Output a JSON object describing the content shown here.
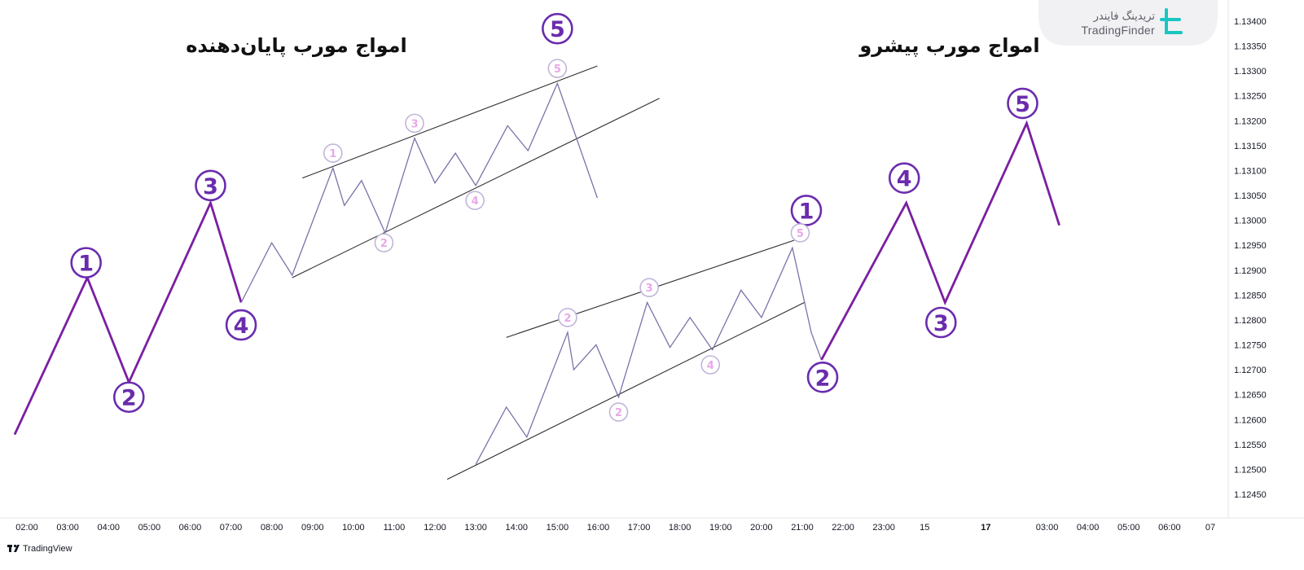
{
  "brand": {
    "name_fa": "تریدینگ فایندر",
    "name_en": "TradingFinder"
  },
  "footer": {
    "platform": "TradingView"
  },
  "colors": {
    "wave": "#7a1fa2",
    "subwave": "#7b73a8",
    "channel": "#2c2c2c",
    "label_big": "#6a2cae",
    "label_small": "#e9a8ea"
  },
  "chart_data": {
    "type": "line",
    "titles": [
      {
        "text": "امواج مورب پایان‌دهنده"
      },
      {
        "text": "امواج مورب پیشرو"
      }
    ],
    "y_axis": {
      "side": "right",
      "ylim": [
        1.1242,
        1.1344
      ],
      "ticks": [
        1.134,
        1.1335,
        1.133,
        1.1325,
        1.132,
        1.1315,
        1.131,
        1.1305,
        1.13,
        1.1295,
        1.129,
        1.1285,
        1.128,
        1.1275,
        1.127,
        1.1265,
        1.126,
        1.1255,
        1.125,
        1.1245
      ],
      "tick_labels": [
        "1.13400",
        "1.13350",
        "1.13300",
        "1.13250",
        "1.13200",
        "1.13150",
        "1.13100",
        "1.13050",
        "1.13000",
        "1.12950",
        "1.12900",
        "1.12850",
        "1.12800",
        "1.12750",
        "1.12700",
        "1.12650",
        "1.12600",
        "1.12550",
        "1.12500",
        "1.12450"
      ]
    },
    "x_axis": {
      "range_hours": [
        -0.3,
        29.3
      ],
      "ticks": [
        {
          "x": 0,
          "label": "02:00",
          "bold": false
        },
        {
          "x": 1,
          "label": "03:00",
          "bold": false
        },
        {
          "x": 2,
          "label": "04:00",
          "bold": false
        },
        {
          "x": 3,
          "label": "05:00",
          "bold": false
        },
        {
          "x": 4,
          "label": "06:00",
          "bold": false
        },
        {
          "x": 5,
          "label": "07:00",
          "bold": false
        },
        {
          "x": 6,
          "label": "08:00",
          "bold": false
        },
        {
          "x": 7,
          "label": "09:00",
          "bold": false
        },
        {
          "x": 8,
          "label": "10:00",
          "bold": false
        },
        {
          "x": 9,
          "label": "11:00",
          "bold": false
        },
        {
          "x": 10,
          "label": "12:00",
          "bold": false
        },
        {
          "x": 11,
          "label": "13:00",
          "bold": false
        },
        {
          "x": 12,
          "label": "14:00",
          "bold": false
        },
        {
          "x": 13,
          "label": "15:00",
          "bold": false
        },
        {
          "x": 14,
          "label": "16:00",
          "bold": false
        },
        {
          "x": 15,
          "label": "17:00",
          "bold": false
        },
        {
          "x": 16,
          "label": "18:00",
          "bold": false
        },
        {
          "x": 17,
          "label": "19:00",
          "bold": false
        },
        {
          "x": 18,
          "label": "20:00",
          "bold": false
        },
        {
          "x": 19,
          "label": "21:00",
          "bold": false
        },
        {
          "x": 20,
          "label": "22:00",
          "bold": false
        },
        {
          "x": 21,
          "label": "23:00",
          "bold": false
        },
        {
          "x": 22,
          "label": "15",
          "bold": false
        },
        {
          "x": 23.5,
          "label": "17",
          "bold": true
        },
        {
          "x": 25,
          "label": "03:00",
          "bold": false
        },
        {
          "x": 26,
          "label": "04:00",
          "bold": false
        },
        {
          "x": 27,
          "label": "05:00",
          "bold": false
        },
        {
          "x": 28,
          "label": "06:00",
          "bold": false
        },
        {
          "x": 29,
          "label": "07",
          "bold": false
        }
      ]
    },
    "series": [
      {
        "style": "wave",
        "points": [
          [
            -0.3,
            1.1257
          ],
          [
            1.48,
            1.12885
          ],
          [
            2.5,
            1.12675
          ],
          [
            4.5,
            1.13035
          ],
          [
            5.25,
            1.12835
          ]
        ]
      },
      {
        "style": "subwave",
        "points": [
          [
            5.25,
            1.12835
          ],
          [
            6.0,
            1.12955
          ],
          [
            6.5,
            1.1289
          ],
          [
            7.5,
            1.13105
          ],
          [
            7.78,
            1.1303
          ],
          [
            8.2,
            1.1308
          ],
          [
            8.78,
            1.12975
          ],
          [
            9.5,
            1.13165
          ],
          [
            10.0,
            1.13075
          ],
          [
            10.5,
            1.13135
          ],
          [
            11.0,
            1.1307
          ],
          [
            11.78,
            1.1319
          ],
          [
            12.28,
            1.1314
          ],
          [
            13.0,
            1.13275
          ],
          [
            13.98,
            1.13045
          ]
        ]
      },
      {
        "style": "subwave",
        "points": [
          [
            11.0,
            1.1251
          ],
          [
            11.75,
            1.12625
          ],
          [
            12.25,
            1.12565
          ],
          [
            13.25,
            1.12775
          ],
          [
            13.4,
            1.127
          ],
          [
            13.95,
            1.1275
          ],
          [
            14.5,
            1.12645
          ],
          [
            15.2,
            1.12835
          ],
          [
            15.76,
            1.12745
          ],
          [
            16.25,
            1.12805
          ],
          [
            16.8,
            1.1274
          ],
          [
            17.5,
            1.1286
          ],
          [
            18.0,
            1.12805
          ],
          [
            18.76,
            1.12945
          ],
          [
            19.22,
            1.12775
          ],
          [
            19.47,
            1.1272
          ]
        ]
      },
      {
        "style": "wave",
        "points": [
          [
            19.47,
            1.1272
          ],
          [
            21.55,
            1.13035
          ],
          [
            22.5,
            1.12835
          ],
          [
            24.5,
            1.13195
          ],
          [
            25.3,
            1.1299
          ]
        ]
      }
    ],
    "channel_lines": [
      [
        [
          6.75,
          1.13085
        ],
        [
          13.98,
          1.1331
        ]
      ],
      [
        [
          6.5,
          1.12885
        ],
        [
          15.5,
          1.13245
        ]
      ],
      [
        [
          11.75,
          1.12765
        ],
        [
          18.8,
          1.1296
        ]
      ],
      [
        [
          10.3,
          1.1248
        ],
        [
          19.05,
          1.12835
        ]
      ]
    ],
    "wave_labels": [
      {
        "text": "1",
        "x": 1.45,
        "y": 1.12915,
        "size": "big"
      },
      {
        "text": "2",
        "x": 2.5,
        "y": 1.12645,
        "size": "big"
      },
      {
        "text": "3",
        "x": 4.5,
        "y": 1.1307,
        "size": "big"
      },
      {
        "text": "4",
        "x": 5.25,
        "y": 1.1279,
        "size": "big"
      },
      {
        "text": "5",
        "x": 13.0,
        "y": 1.13385,
        "size": "big"
      },
      {
        "text": "1",
        "x": 19.1,
        "y": 1.1302,
        "size": "big"
      },
      {
        "text": "2",
        "x": 19.5,
        "y": 1.12685,
        "size": "big"
      },
      {
        "text": "3",
        "x": 22.4,
        "y": 1.12795,
        "size": "big"
      },
      {
        "text": "4",
        "x": 21.5,
        "y": 1.13085,
        "size": "big"
      },
      {
        "text": "5",
        "x": 24.4,
        "y": 1.13235,
        "size": "big"
      },
      {
        "text": "1",
        "x": 7.5,
        "y": 1.13135,
        "size": "small"
      },
      {
        "text": "2",
        "x": 8.75,
        "y": 1.12955,
        "size": "small"
      },
      {
        "text": "3",
        "x": 9.5,
        "y": 1.13195,
        "size": "small"
      },
      {
        "text": "4",
        "x": 10.98,
        "y": 1.1304,
        "size": "small"
      },
      {
        "text": "5",
        "x": 13.0,
        "y": 1.13305,
        "size": "small"
      },
      {
        "text": "2",
        "x": 13.25,
        "y": 1.12805,
        "size": "small"
      },
      {
        "text": "2",
        "x": 14.5,
        "y": 1.12615,
        "size": "small"
      },
      {
        "text": "3",
        "x": 15.25,
        "y": 1.12865,
        "size": "small"
      },
      {
        "text": "4",
        "x": 16.75,
        "y": 1.1271,
        "size": "small"
      },
      {
        "text": "5",
        "x": 18.95,
        "y": 1.12975,
        "size": "small"
      }
    ]
  }
}
